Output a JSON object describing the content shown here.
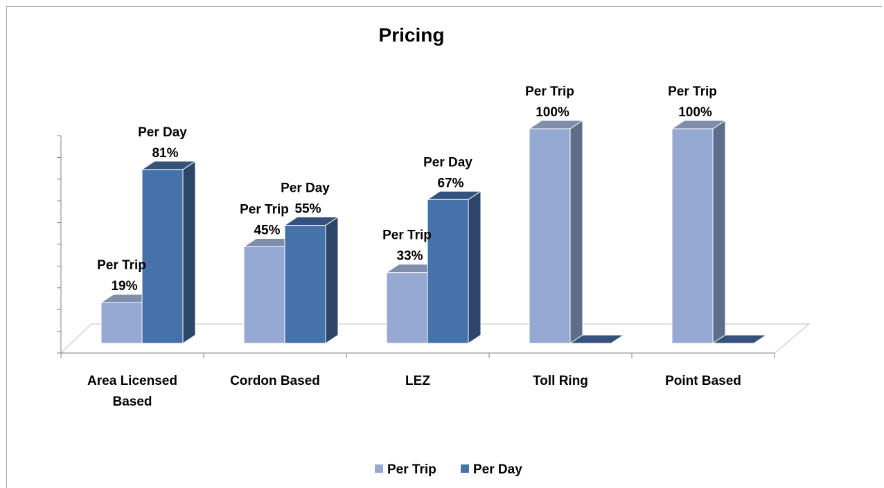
{
  "chart_data": {
    "type": "bar",
    "title": "Pricing",
    "categories": [
      "Area Licensed Based",
      "Cordon Based",
      "LEZ",
      "Toll Ring",
      "Point Based"
    ],
    "category_lines": [
      [
        "Area Licensed",
        "Based"
      ],
      [
        "Cordon Based"
      ],
      [
        "LEZ"
      ],
      [
        "Toll Ring"
      ],
      [
        "Point Based"
      ]
    ],
    "series": [
      {
        "name": "Per Trip",
        "values": [
          19,
          45,
          33,
          100,
          100
        ],
        "value_labels": [
          "19%",
          "45%",
          "33%",
          "100%",
          "100%"
        ],
        "color": "#95a9d2",
        "side_color": "#5e6d8a",
        "top_color": "#7f8fab"
      },
      {
        "name": "Per Day",
        "values": [
          81,
          55,
          67,
          0,
          0
        ],
        "value_labels": [
          "81%",
          "55%",
          "67%",
          "",
          ""
        ],
        "color": "#4572ab",
        "side_color": "#2c4569",
        "top_color": "#34527c"
      }
    ],
    "ylim": [
      0,
      100
    ],
    "grid": false,
    "legend": "bottom",
    "three_d": true
  }
}
